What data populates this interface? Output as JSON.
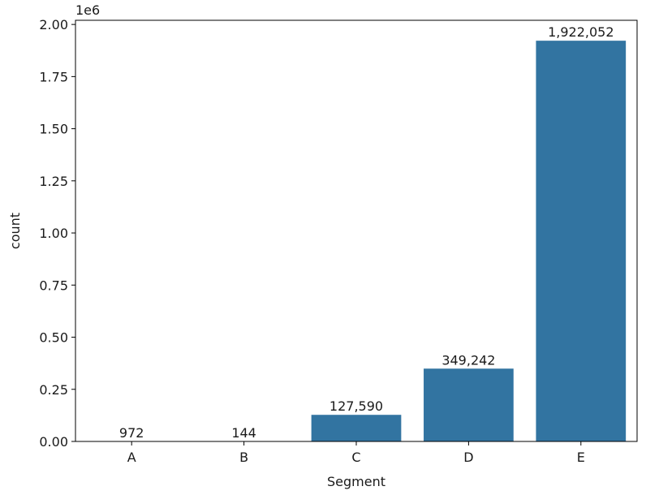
{
  "chart_data": {
    "type": "bar",
    "categories": [
      "A",
      "B",
      "C",
      "D",
      "E"
    ],
    "values": [
      972,
      144,
      127590,
      349242,
      1922052
    ],
    "data_labels": [
      "972",
      "144",
      "127,590",
      "349,242",
      "1,922,052"
    ],
    "xlabel": "Segment",
    "ylabel": "count",
    "ylim": [
      0,
      2020000
    ],
    "yticks": [
      0,
      250000,
      500000,
      750000,
      1000000,
      1250000,
      1500000,
      1750000,
      2000000
    ],
    "ytick_labels": [
      "0.00",
      "0.25",
      "0.50",
      "0.75",
      "1.00",
      "1.25",
      "1.50",
      "1.75",
      "2.00"
    ],
    "y_offset_label": "1e6",
    "bar_color": "#3274a1",
    "grid": false,
    "legend": "none"
  }
}
